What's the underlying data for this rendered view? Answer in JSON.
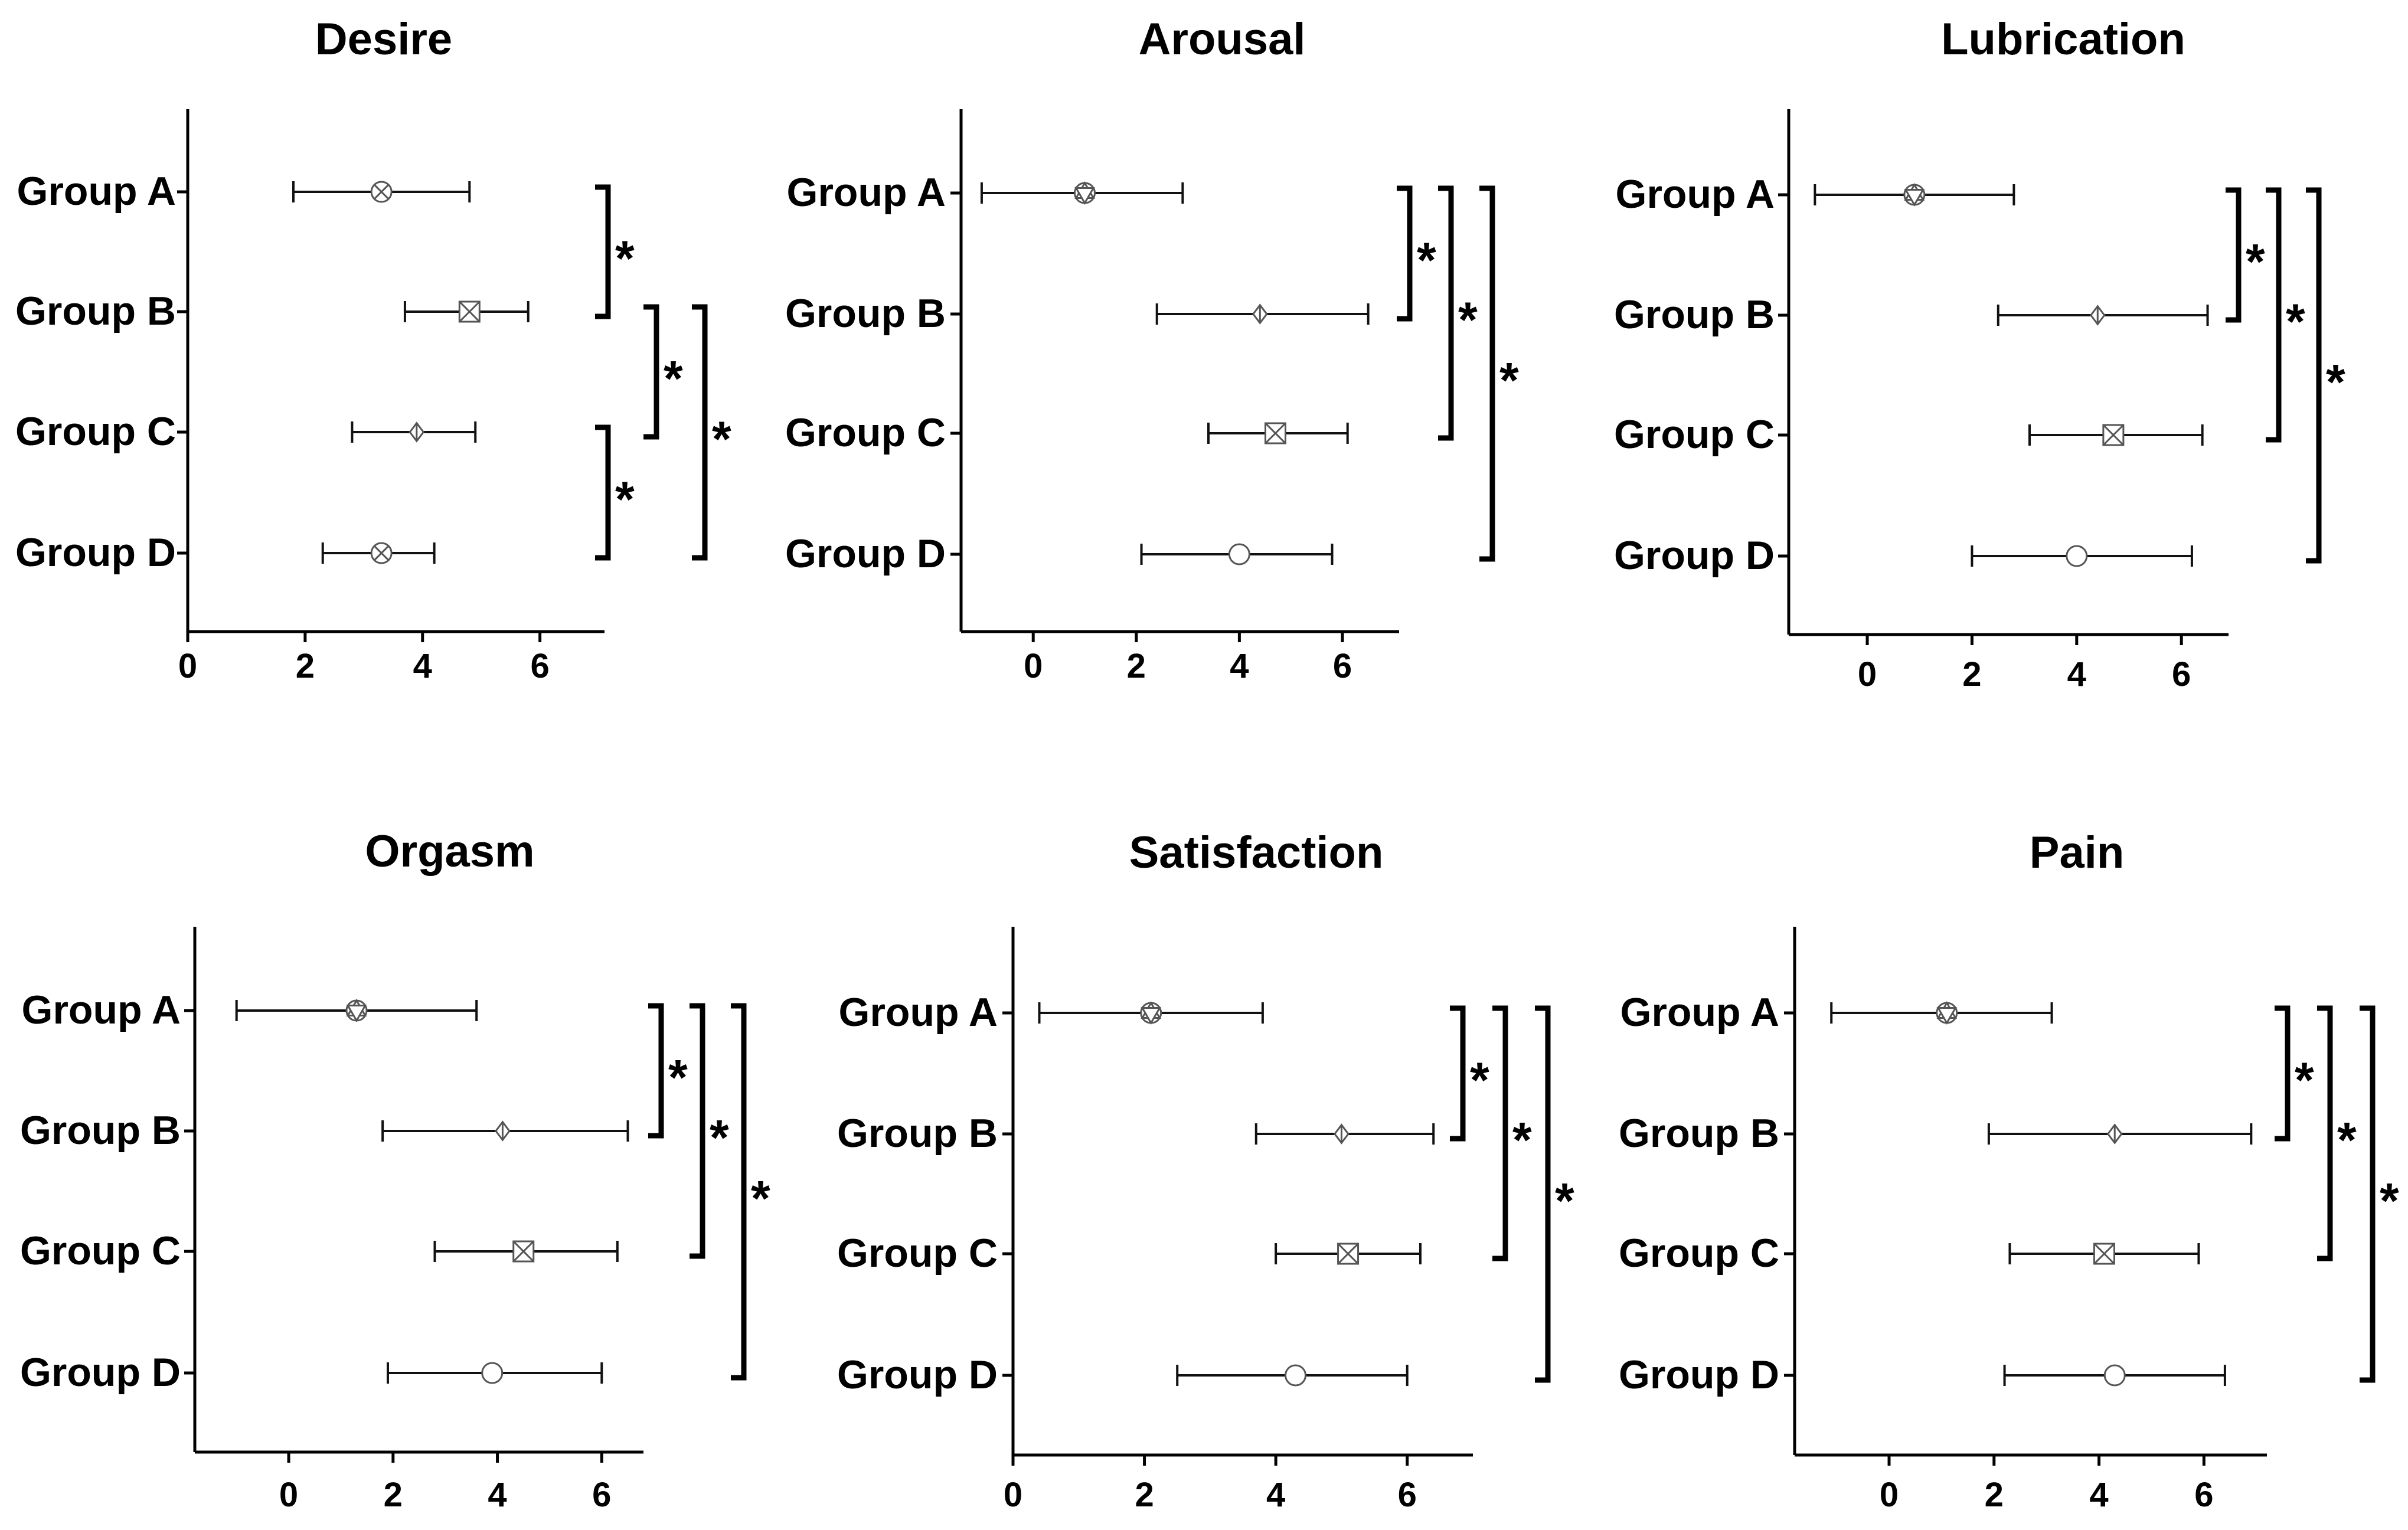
{
  "chart_data": [
    {
      "type": "forest",
      "title": "Desire",
      "categories": [
        "Group A",
        "Group B",
        "Group C",
        "Group D"
      ],
      "values": [
        3.3,
        4.8,
        3.9,
        3.3
      ],
      "lower": [
        1.8,
        3.7,
        2.8,
        2.3
      ],
      "upper": [
        4.8,
        5.8,
        4.9,
        4.2
      ],
      "markers": [
        "circle-x",
        "square-x",
        "diamond",
        "circle-x"
      ],
      "xlim": [
        0,
        7.1
      ],
      "xticks": [
        0,
        2,
        4,
        6
      ],
      "xtick_labels": [
        "0",
        "2",
        "4",
        "6"
      ],
      "significance": [
        {
          "from": "Group A",
          "to": "Group B",
          "label": "*",
          "level": 1
        },
        {
          "from": "Group B",
          "to": "Group C",
          "label": "*",
          "level": 2
        },
        {
          "from": "Group C",
          "to": "Group D",
          "label": "*",
          "level": 1
        },
        {
          "from": "Group B",
          "to": "Group D",
          "label": "*",
          "level": 3
        }
      ]
    },
    {
      "type": "forest",
      "title": "Arousal",
      "categories": [
        "Group A",
        "Group B",
        "Group C",
        "Group D"
      ],
      "values": [
        1.0,
        4.4,
        4.7,
        4.0
      ],
      "lower": [
        -1.0,
        2.4,
        3.4,
        2.1
      ],
      "upper": [
        2.9,
        6.5,
        6.1,
        5.8
      ],
      "markers": [
        "hexagram",
        "diamond",
        "square-x",
        "circle"
      ],
      "xlim": [
        -1.4,
        7.1
      ],
      "xticks": [
        0,
        2,
        4,
        6
      ],
      "xtick_labels": [
        "0",
        "2",
        "4",
        "6"
      ],
      "significance": [
        {
          "from": "Group A",
          "to": "Group B",
          "label": "*",
          "level": 1
        },
        {
          "from": "Group A",
          "to": "Group C",
          "label": "*",
          "level": 2
        },
        {
          "from": "Group A",
          "to": "Group D",
          "label": "*",
          "level": 3
        }
      ]
    },
    {
      "type": "forest",
      "title": "Lubrication",
      "categories": [
        "Group A",
        "Group B",
        "Group C",
        "Group D"
      ],
      "values": [
        0.9,
        4.4,
        4.7,
        4.0
      ],
      "lower": [
        -1.0,
        2.5,
        3.1,
        2.0
      ],
      "upper": [
        2.8,
        6.5,
        6.4,
        6.2
      ],
      "markers": [
        "hexagram",
        "diamond",
        "square-x",
        "circle"
      ],
      "xlim": [
        -1.5,
        6.9
      ],
      "xticks": [
        0,
        2,
        4,
        6
      ],
      "xtick_labels": [
        "0",
        "2",
        "4",
        "6"
      ],
      "significance": [
        {
          "from": "Group A",
          "to": "Group B",
          "label": "*",
          "level": 1
        },
        {
          "from": "Group A",
          "to": "Group C",
          "label": "*",
          "level": 2
        },
        {
          "from": "Group A",
          "to": "Group D",
          "label": "*",
          "level": 3
        }
      ]
    },
    {
      "type": "forest",
      "title": "Orgasm",
      "categories": [
        "Group A",
        "Group B",
        "Group C",
        "Group D"
      ],
      "values": [
        1.3,
        4.1,
        4.5,
        3.9
      ],
      "lower": [
        -1.0,
        1.8,
        2.8,
        1.9
      ],
      "upper": [
        3.6,
        6.5,
        6.3,
        6.0
      ],
      "markers": [
        "hexagram",
        "diamond",
        "square-x",
        "circle"
      ],
      "xlim": [
        -1.8,
        6.8
      ],
      "xticks": [
        0,
        2,
        4,
        6
      ],
      "xtick_labels": [
        "0",
        "2",
        "4",
        "6"
      ],
      "significance": [
        {
          "from": "Group A",
          "to": "Group B",
          "label": "*",
          "level": 1
        },
        {
          "from": "Group A",
          "to": "Group C",
          "label": "*",
          "level": 2
        },
        {
          "from": "Group A",
          "to": "Group D",
          "label": "*",
          "level": 3
        }
      ]
    },
    {
      "type": "forest",
      "title": "Satisfaction",
      "categories": [
        "Group A",
        "Group B",
        "Group C",
        "Group D"
      ],
      "values": [
        2.1,
        5.0,
        5.1,
        4.3
      ],
      "lower": [
        0.4,
        3.7,
        4.0,
        2.5
      ],
      "upper": [
        3.8,
        6.4,
        6.2,
        6.0
      ],
      "markers": [
        "hexagram",
        "diamond",
        "square-x",
        "circle"
      ],
      "xlim": [
        0,
        7.0
      ],
      "xticks": [
        0,
        2,
        4,
        6
      ],
      "xtick_labels": [
        "0",
        "2",
        "4",
        "6"
      ],
      "significance": [
        {
          "from": "Group A",
          "to": "Group B",
          "label": "*",
          "level": 1
        },
        {
          "from": "Group A",
          "to": "Group C",
          "label": "*",
          "level": 2
        },
        {
          "from": "Group A",
          "to": "Group D",
          "label": "*",
          "level": 3
        }
      ]
    },
    {
      "type": "forest",
      "title": "Pain",
      "categories": [
        "Group A",
        "Group B",
        "Group C",
        "Group D"
      ],
      "values": [
        1.1,
        4.3,
        4.1,
        4.3
      ],
      "lower": [
        -1.1,
        1.9,
        2.3,
        2.2
      ],
      "upper": [
        3.1,
        6.9,
        5.9,
        6.4
      ],
      "markers": [
        "hexagram",
        "diamond",
        "square-x",
        "circle"
      ],
      "xlim": [
        -1.8,
        7.2
      ],
      "xticks": [
        0,
        2,
        4,
        6
      ],
      "xtick_labels": [
        "0",
        "2",
        "4",
        "6"
      ],
      "significance": [
        {
          "from": "Group A",
          "to": "Group B",
          "label": "*",
          "level": 1
        },
        {
          "from": "Group A",
          "to": "Group C",
          "label": "*",
          "level": 2
        },
        {
          "from": "Group A",
          "to": "Group D",
          "label": "*",
          "level": 3
        }
      ]
    }
  ]
}
